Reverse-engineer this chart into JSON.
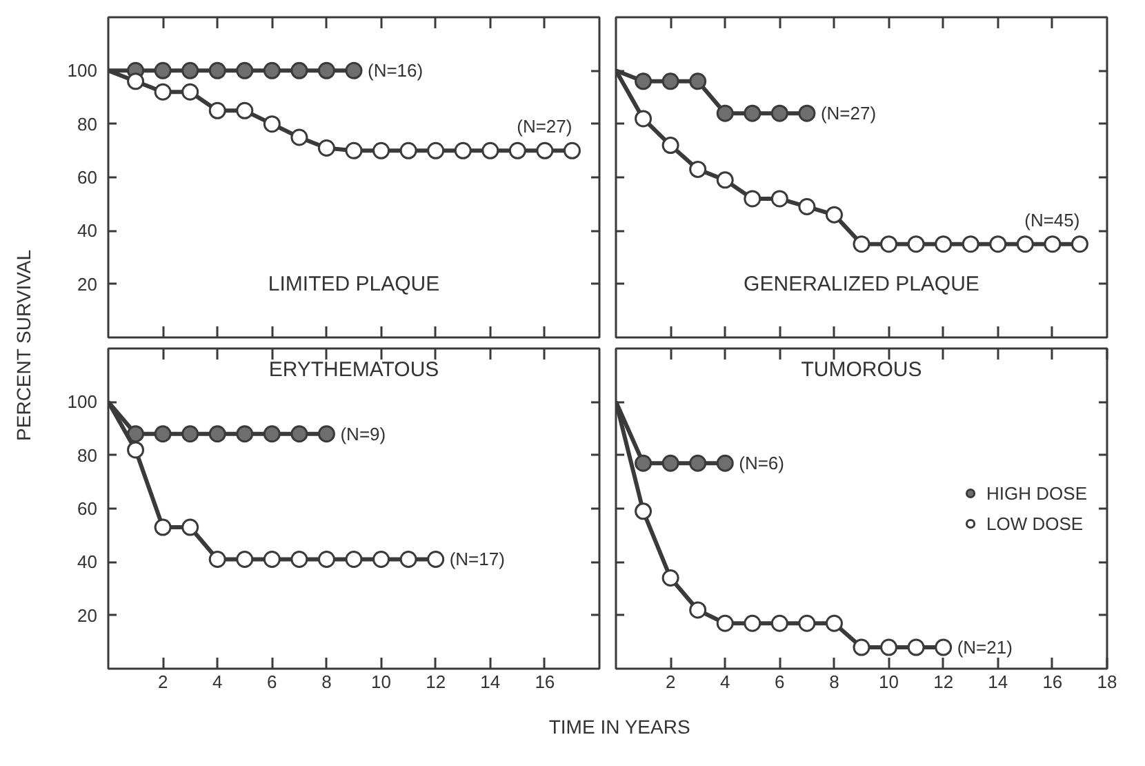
{
  "chart_data": [
    {
      "type": "line",
      "title": "LIMITED PLAQUE",
      "ylabel": "PERCENT SURVIVAL",
      "xlim": [
        0,
        18
      ],
      "ylim": [
        0,
        120
      ],
      "xticks": [
        2,
        4,
        6,
        8,
        10,
        12,
        14,
        16
      ],
      "yticks": [
        20,
        40,
        60,
        80,
        100
      ],
      "tick_labels": "y",
      "marker": "circle",
      "x": [
        0,
        1,
        2,
        3,
        4,
        5,
        6,
        7,
        8,
        9,
        10,
        11,
        12,
        13,
        14,
        15,
        16,
        17
      ],
      "series": [
        {
          "color": "#6e6e6e",
          "x": [
            0,
            1,
            2,
            3,
            4,
            5,
            6,
            7,
            8,
            9
          ],
          "values": [
            100,
            100,
            100,
            100,
            100,
            100,
            100,
            100,
            100,
            100
          ]
        },
        {
          "color": "#ffffff",
          "values": [
            100,
            96,
            92,
            92,
            85,
            85,
            80,
            75,
            71,
            70,
            70,
            70,
            70,
            70,
            70,
            70,
            70,
            70
          ]
        }
      ],
      "annotations": [
        {
          "text": "(N=16)",
          "x": 9,
          "y": 100
        },
        {
          "text": "(N=27)",
          "x": 17,
          "y": 70
        }
      ]
    },
    {
      "type": "line",
      "title": "GENERALIZED PLAQUE",
      "xlim": [
        0,
        18
      ],
      "ylim": [
        0,
        120
      ],
      "xticks": [
        2,
        4,
        6,
        8,
        10,
        12,
        14,
        16
      ],
      "yticks": [
        20,
        40,
        60,
        80,
        100
      ],
      "tick_labels": false,
      "marker": "circle",
      "x": [
        0,
        1,
        2,
        3,
        4,
        5,
        6,
        7,
        8,
        9,
        10,
        11,
        12,
        13,
        14,
        15,
        16,
        17
      ],
      "series": [
        {
          "color": "#6e6e6e",
          "x": [
            0,
            1,
            2,
            3,
            4,
            5,
            6,
            7
          ],
          "values": [
            100,
            96,
            96,
            96,
            84,
            84,
            84,
            84
          ]
        },
        {
          "color": "#ffffff",
          "values": [
            100,
            82,
            72,
            63,
            59,
            52,
            52,
            49,
            46,
            35,
            35,
            35,
            35,
            35,
            35,
            35,
            35,
            35
          ]
        }
      ],
      "annotations": [
        {
          "text": "(N=27)",
          "x": 7,
          "y": 84
        },
        {
          "text": "(N=45)",
          "x": 17,
          "y": 35
        }
      ]
    },
    {
      "type": "line",
      "title": "ERYTHEMATOUS",
      "xlabel": "TIME IN YEARS",
      "xlim": [
        0,
        18
      ],
      "ylim": [
        0,
        120
      ],
      "xticks": [
        2,
        4,
        6,
        8,
        10,
        12,
        14,
        16
      ],
      "yticks": [
        20,
        40,
        60,
        80,
        100
      ],
      "marker": "circle",
      "x": [
        0,
        1,
        2,
        3,
        4,
        5,
        6,
        7,
        8,
        9,
        10,
        11,
        12
      ],
      "series": [
        {
          "color": "#6e6e6e",
          "x": [
            0,
            1,
            2,
            3,
            4,
            5,
            6,
            7,
            8
          ],
          "values": [
            100,
            88,
            88,
            88,
            88,
            88,
            88,
            88,
            88
          ]
        },
        {
          "color": "#ffffff",
          "values": [
            100,
            82,
            53,
            53,
            41,
            41,
            41,
            41,
            41,
            41,
            41,
            41,
            41
          ]
        }
      ],
      "annotations": [
        {
          "text": "(N=9)",
          "x": 8,
          "y": 88
        },
        {
          "text": "(N=17)",
          "x": 12,
          "y": 41
        }
      ]
    },
    {
      "type": "line",
      "title": "TUMOROUS",
      "xlim": [
        0,
        18
      ],
      "ylim": [
        0,
        120
      ],
      "xticks": [
        2,
        4,
        6,
        8,
        10,
        12,
        14,
        16,
        18
      ],
      "yticks": [
        20,
        40,
        60,
        80,
        100
      ],
      "tick_labels": "x",
      "marker": "circle",
      "legend": "right",
      "x": [
        0,
        1,
        2,
        3,
        4,
        5,
        6,
        7,
        8,
        9,
        10,
        11,
        12
      ],
      "series": [
        {
          "name": "HIGH DOSE",
          "color": "#6e6e6e",
          "x": [
            0,
            1,
            2,
            3,
            4
          ],
          "values": [
            100,
            77,
            77,
            77,
            77
          ]
        },
        {
          "name": "LOW DOSE",
          "color": "#ffffff",
          "values": [
            100,
            59,
            34,
            22,
            17,
            17,
            17,
            17,
            17,
            8,
            8,
            8,
            8
          ]
        }
      ],
      "annotations": [
        {
          "text": "(N=6)",
          "x": 4,
          "y": 77
        },
        {
          "text": "(N=21)",
          "x": 12,
          "y": 8
        }
      ]
    }
  ]
}
